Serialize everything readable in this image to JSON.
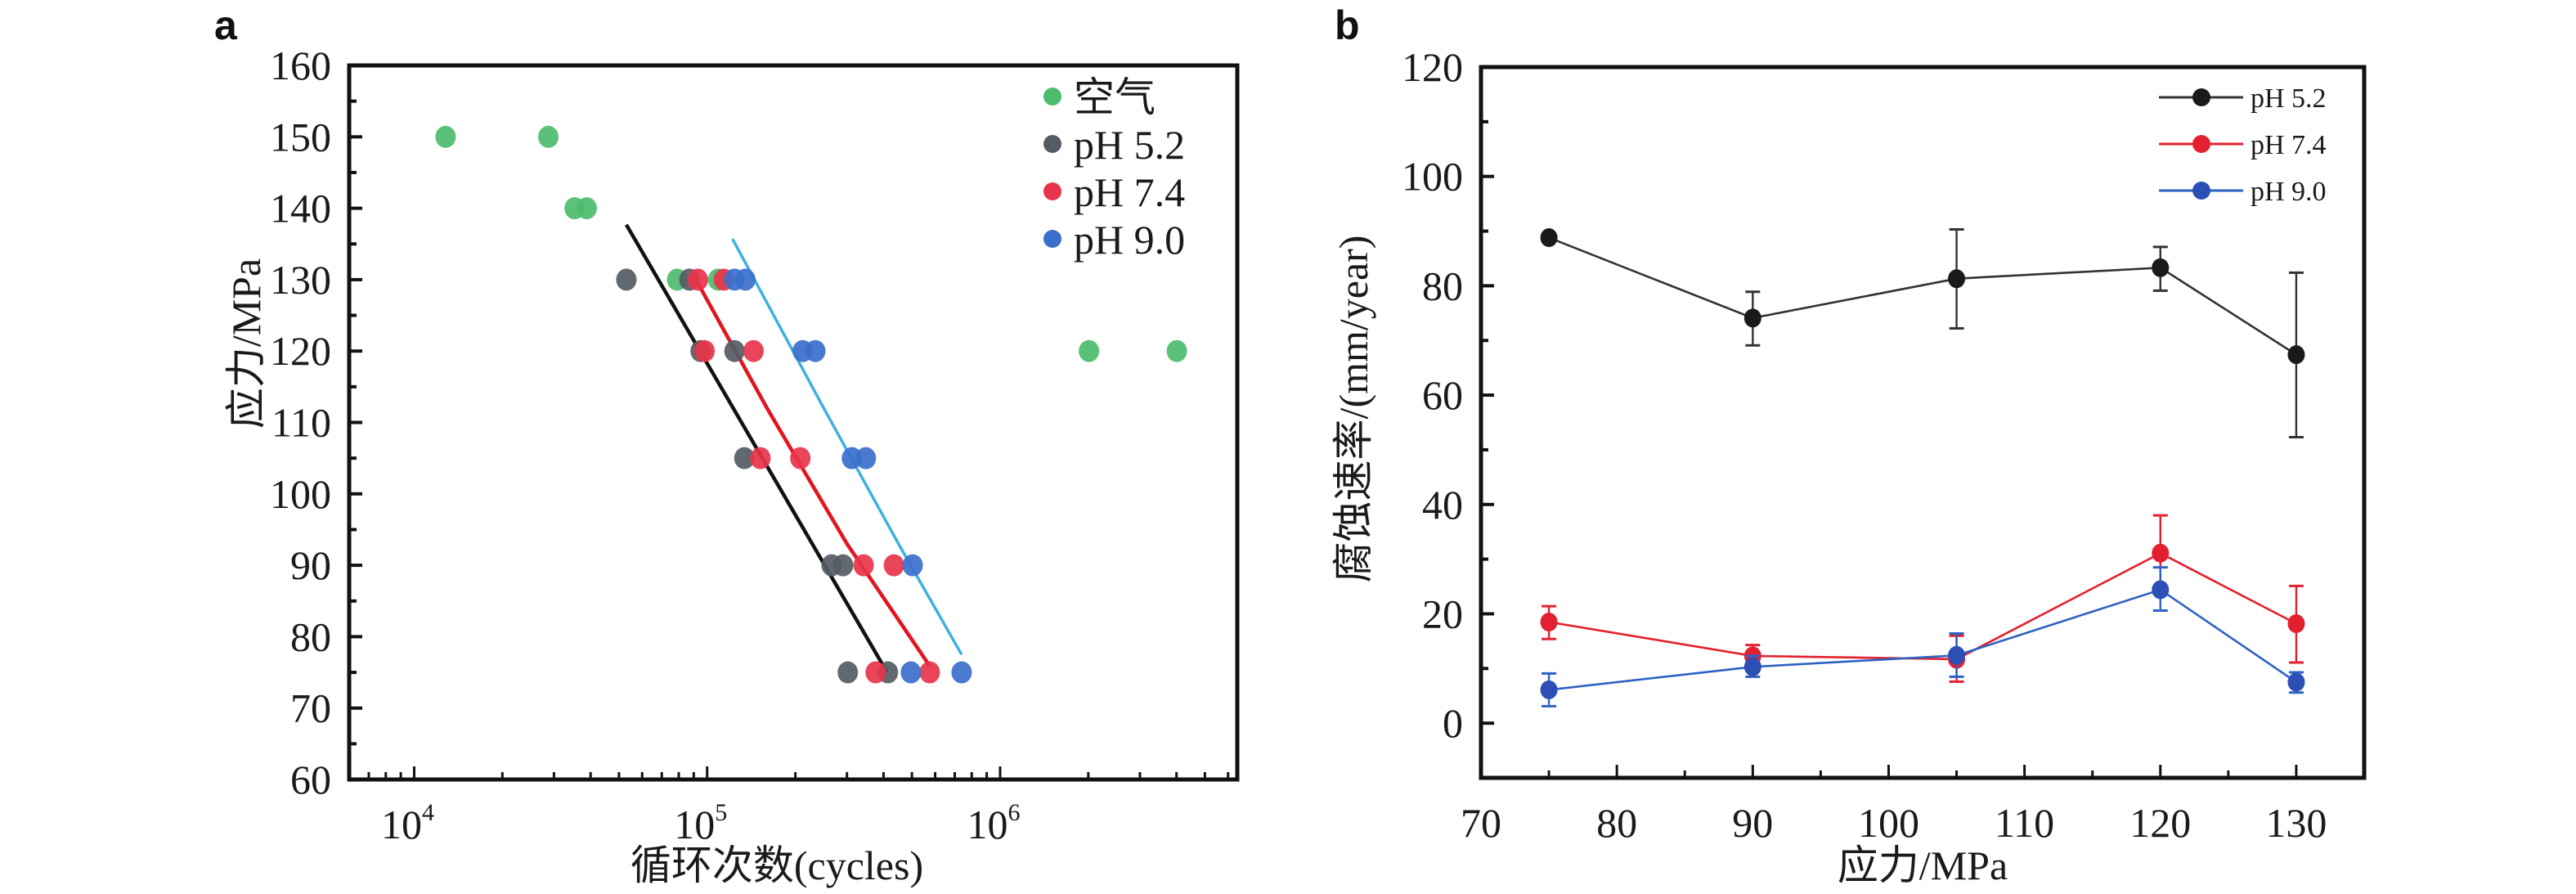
{
  "chart_data": [
    {
      "panel": "a",
      "type": "scatter",
      "xscale": "log",
      "xlabel": "循环次数(cycles)",
      "ylabel": "应力/MPa",
      "xlim": [
        6000,
        6450000
      ],
      "ylim": [
        60,
        160
      ],
      "xticks": [
        {
          "value": 10000,
          "base": "10",
          "exp": "4"
        },
        {
          "value": 100000,
          "base": "10",
          "exp": "5"
        },
        {
          "value": 1000000,
          "base": "10",
          "exp": "6"
        }
      ],
      "yticks": [
        60,
        70,
        80,
        90,
        100,
        110,
        120,
        130,
        140,
        150,
        160
      ],
      "legend_position": "top-right",
      "series": [
        {
          "name": "空气",
          "color": "#4dbb6c",
          "points": [
            [
              12800,
              150
            ],
            [
              28700,
              150
            ],
            [
              35300,
              140
            ],
            [
              38800,
              140
            ],
            [
              79000,
              130
            ],
            [
              109000,
              130
            ],
            [
              2010000,
              120
            ],
            [
              4010000,
              120
            ]
          ]
        },
        {
          "name": "pH 5.2",
          "color": "#555b63",
          "points": [
            [
              53000,
              130
            ],
            [
              87000,
              130
            ],
            [
              95000,
              120
            ],
            [
              124000,
              120
            ],
            [
              134000,
              105
            ],
            [
              266000,
              90
            ],
            [
              291000,
              90
            ],
            [
              302000,
              75
            ],
            [
              414000,
              75
            ]
          ],
          "fit": [
            [
              53000,
              137.7
            ],
            [
              410000,
              75.1
            ]
          ]
        },
        {
          "name": "pH 7.4",
          "color": "#e8344a",
          "points": [
            [
              93000,
              130
            ],
            [
              114000,
              130
            ],
            [
              98000,
              120
            ],
            [
              144000,
              120
            ],
            [
              152000,
              105
            ],
            [
              208000,
              105
            ],
            [
              342000,
              90
            ],
            [
              434000,
              90
            ],
            [
              376000,
              75
            ],
            [
              575000,
              75
            ]
          ],
          "fit": [
            [
              93000,
              129.5
            ],
            [
              160000,
              112
            ],
            [
              300000,
              93
            ],
            [
              575000,
              75.9
            ]
          ]
        },
        {
          "name": "pH 9.0",
          "color": "#3a6fcc",
          "points": [
            [
              124000,
              130
            ],
            [
              135000,
              130
            ],
            [
              212000,
              120
            ],
            [
              234000,
              120
            ],
            [
              312000,
              105
            ],
            [
              348000,
              105
            ],
            [
              503000,
              90
            ],
            [
              496000,
              75
            ],
            [
              739000,
              75
            ]
          ],
          "fit": [
            [
              122000,
              135.7
            ],
            [
              250000,
              112
            ],
            [
              450000,
              93
            ],
            [
              739000,
              77.5
            ]
          ],
          "fit_color": "#3fb0e0"
        }
      ]
    },
    {
      "panel": "b",
      "type": "line",
      "xlabel": "应力/MPa",
      "ylabel": "腐蚀速率/(mm/year)",
      "xlim": [
        70,
        135
      ],
      "ylim": [
        -10,
        120
      ],
      "xticks": [
        70,
        80,
        90,
        100,
        110,
        120,
        130
      ],
      "yticks": [
        0,
        20,
        40,
        60,
        80,
        100,
        120
      ],
      "legend_position": "top-right",
      "x": [
        75,
        90,
        105,
        120,
        130
      ],
      "series": [
        {
          "name": "pH 5.2",
          "color": "#1a1a1a",
          "line_color": "#333333",
          "values": [
            88.8,
            74.1,
            81.3,
            83.3,
            67.4
          ],
          "err_low": [
            88.8,
            69.1,
            72.2,
            79.1,
            52.3
          ],
          "err_high": [
            88.8,
            78.9,
            90.3,
            87.1,
            82.4
          ]
        },
        {
          "name": "pH 7.4",
          "color": "#e3202e",
          "line_color": "#e3202e",
          "values": [
            18.5,
            12.3,
            11.7,
            31.1,
            18.2
          ],
          "err_low": [
            15.4,
            10.2,
            7.6,
            24.2,
            11.1
          ],
          "err_high": [
            21.4,
            14.3,
            16.0,
            38.0,
            25.1
          ]
        },
        {
          "name": "pH 9.0",
          "color": "#2b4fb5",
          "line_color": "#2e62c2",
          "values": [
            6.1,
            10.3,
            12.4,
            24.4,
            7.5
          ],
          "err_low": [
            3.1,
            8.5,
            8.5,
            20.6,
            5.6
          ],
          "err_high": [
            9.1,
            12.3,
            16.4,
            28.5,
            9.3
          ]
        }
      ]
    }
  ],
  "labels": {
    "panel_a": "a",
    "panel_b": "b"
  }
}
